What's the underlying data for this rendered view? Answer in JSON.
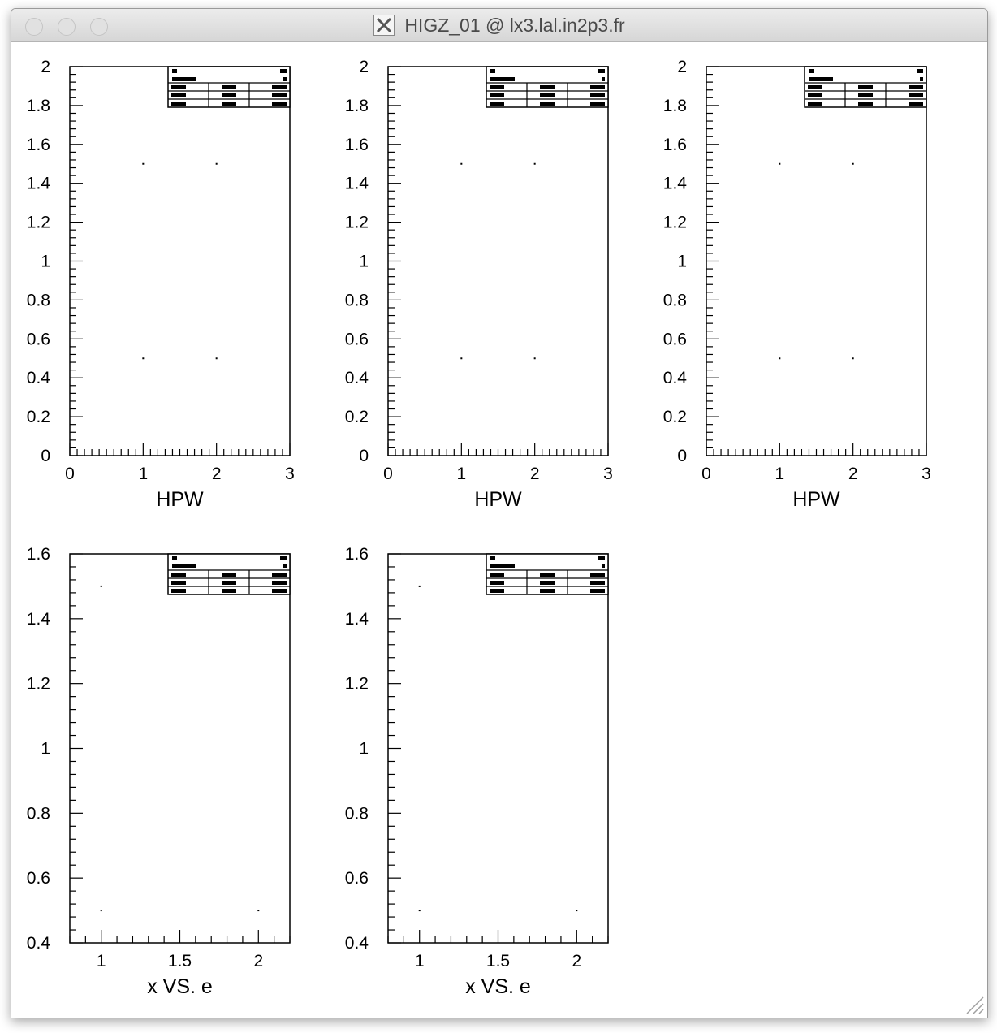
{
  "window": {
    "title": "HIGZ_01 @ lx3.lal.in2p3.fr",
    "icon": "x11-icon",
    "buttons": [
      "close-button",
      "minimize-button",
      "zoom-button"
    ]
  },
  "colors": {
    "ink": "#000000",
    "background": "#ffffff",
    "titlebar": "#dcdcdc"
  },
  "chart_data": [
    {
      "type": "scatter",
      "xlabel": "HPW",
      "xlim": [
        0,
        3
      ],
      "ylim": [
        0,
        2
      ],
      "xticks": [
        "0",
        "1",
        "2",
        "3"
      ],
      "yticks": [
        "0",
        "0.2",
        "0.4",
        "0.6",
        "0.8",
        "1",
        "1.2",
        "1.4",
        "1.6",
        "1.8",
        "2"
      ],
      "points": [
        [
          1,
          1.5
        ],
        [
          2,
          1.5
        ],
        [
          1,
          0.5
        ],
        [
          2,
          0.5
        ]
      ],
      "grid": false,
      "legend": "top-right"
    },
    {
      "type": "scatter",
      "xlabel": "HPW",
      "xlim": [
        0,
        3
      ],
      "ylim": [
        0,
        2
      ],
      "xticks": [
        "0",
        "1",
        "2",
        "3"
      ],
      "yticks": [
        "0",
        "0.2",
        "0.4",
        "0.6",
        "0.8",
        "1",
        "1.2",
        "1.4",
        "1.6",
        "1.8",
        "2"
      ],
      "points": [
        [
          1,
          1.5
        ],
        [
          2,
          1.5
        ],
        [
          1,
          0.5
        ],
        [
          2,
          0.5
        ]
      ],
      "grid": false,
      "legend": "top-right"
    },
    {
      "type": "scatter",
      "xlabel": "HPW",
      "xlim": [
        0,
        3
      ],
      "ylim": [
        0,
        2
      ],
      "xticks": [
        "0",
        "1",
        "2",
        "3"
      ],
      "yticks": [
        "0",
        "0.2",
        "0.4",
        "0.6",
        "0.8",
        "1",
        "1.2",
        "1.4",
        "1.6",
        "1.8",
        "2"
      ],
      "points": [
        [
          1,
          1.5
        ],
        [
          2,
          1.5
        ],
        [
          1,
          0.5
        ],
        [
          2,
          0.5
        ]
      ],
      "grid": false,
      "legend": "top-right"
    },
    {
      "type": "scatter",
      "xlabel": "x VS. e",
      "xlim": [
        0.8,
        2.2
      ],
      "ylim": [
        0.4,
        1.6
      ],
      "xticks": [
        "1",
        "1.5",
        "2"
      ],
      "yticks": [
        "0.4",
        "0.6",
        "0.8",
        "1",
        "1.2",
        "1.4",
        "1.6"
      ],
      "points": [
        [
          1,
          1.5
        ],
        [
          1,
          0.5
        ],
        [
          2,
          0.5
        ]
      ],
      "grid": false,
      "legend": "top-right"
    },
    {
      "type": "scatter",
      "xlabel": "x VS. e",
      "xlim": [
        0.8,
        2.2
      ],
      "ylim": [
        0.4,
        1.6
      ],
      "xticks": [
        "1",
        "1.5",
        "2"
      ],
      "yticks": [
        "0.4",
        "0.6",
        "0.8",
        "1",
        "1.2",
        "1.4",
        "1.6"
      ],
      "points": [
        [
          1,
          1.5
        ],
        [
          1,
          0.5
        ],
        [
          2,
          0.5
        ]
      ],
      "grid": false,
      "legend": "top-right"
    }
  ]
}
